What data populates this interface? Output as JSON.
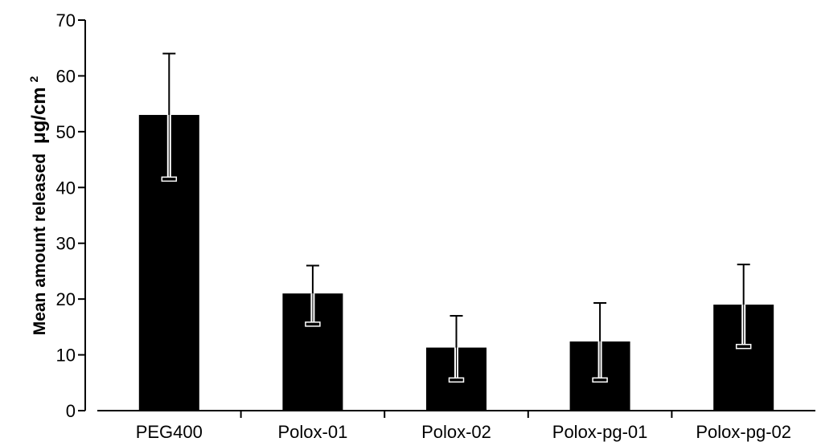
{
  "chart_data": {
    "type": "bar",
    "title": "",
    "xlabel": "",
    "ylabel": "Mean amount released",
    "ylabel_unit": "μg/cm",
    "ylabel_unit_superscript": "2",
    "categories": [
      "PEG400",
      "Polox-01",
      "Polox-02",
      "Polox-pg-01",
      "Polox-pg-02"
    ],
    "values": [
      53,
      21,
      11.3,
      12.4,
      19
    ],
    "error_upper": [
      64,
      26,
      17,
      19.3,
      26.2
    ],
    "error_lower": [
      41.5,
      15.5,
      5.5,
      5.5,
      11.5
    ],
    "ylim": [
      0,
      70
    ],
    "yticks": [
      0,
      10,
      20,
      30,
      40,
      50,
      60,
      70
    ],
    "ytick_labels": [
      "0",
      "10",
      "20",
      "30",
      "40",
      "50",
      "60",
      "70"
    ],
    "grid": false,
    "legend": "none",
    "bar_color": "#000000",
    "error_bar_color": "#000000"
  }
}
